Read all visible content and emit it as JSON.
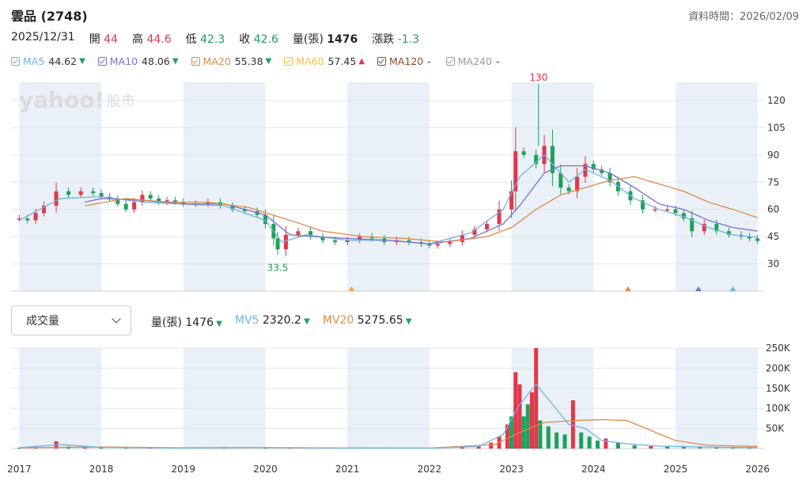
{
  "header": {
    "title": "雲品 (2748)",
    "timestamp_label": "資料時間：2026/02/09"
  },
  "quote": {
    "date": "2025/12/31",
    "open_label": "開",
    "open": "44",
    "high_label": "高",
    "high": "44.6",
    "low_label": "低",
    "low": "42.3",
    "close_label": "收",
    "close": "42.6",
    "volume_label": "量(張)",
    "volume": "1476",
    "change_label": "漲跌",
    "change": "-1.3"
  },
  "ma_legend": [
    {
      "name": "MA5",
      "value": "44.62",
      "trend": "down",
      "color": "#6fb3e0"
    },
    {
      "name": "MA10",
      "value": "48.06",
      "trend": "down",
      "color": "#7b6fd0"
    },
    {
      "name": "MA20",
      "value": "55.38",
      "trend": "down",
      "color": "#e08a4a"
    },
    {
      "name": "MA60",
      "value": "57.45",
      "trend": "up",
      "color": "#f0c040"
    },
    {
      "name": "MA120",
      "value": "-",
      "trend": "none",
      "color": "#8b4a2a"
    },
    {
      "name": "MA240",
      "value": "-",
      "trend": "none",
      "color": "#999999"
    }
  ],
  "watermark": {
    "brand": "yahoo!",
    "section": "股市"
  },
  "volume_selector": {
    "selected": "成交量"
  },
  "volume_legend": [
    {
      "name": "量(張)",
      "value": "1476",
      "trend": "down",
      "color": "#222222"
    },
    {
      "name": "MV5",
      "value": "2320.2",
      "trend": "down",
      "color": "#6fb3e0"
    },
    {
      "name": "MV20",
      "value": "5275.65",
      "trend": "down",
      "color": "#e08a4a"
    }
  ],
  "colors": {
    "up": "#e0384a",
    "down": "#1ea05a",
    "band": "#e9f0f7"
  },
  "chart_data": [
    {
      "type": "candlestick",
      "title": "",
      "x_labels": [
        "2017",
        "2018",
        "2019",
        "2020",
        "2021",
        "2022",
        "2023",
        "2024",
        "2025",
        "2026"
      ],
      "y_ticks": [
        30,
        45,
        60,
        75,
        90,
        105,
        120
      ],
      "ylim": [
        15,
        130
      ],
      "annotations": [
        {
          "text": "130",
          "x": 2023.33,
          "y": 130,
          "kind": "high"
        },
        {
          "text": "33.5",
          "x": 2020.15,
          "y": 33.5,
          "kind": "low"
        }
      ],
      "event_markers": [
        {
          "x": 2021.05,
          "color": "#f0a050"
        },
        {
          "x": 2024.42,
          "color": "#e08a4a"
        },
        {
          "x": 2025.28,
          "color": "#7b6fd0"
        },
        {
          "x": 2025.7,
          "color": "#6fb3e0"
        }
      ],
      "close_series": [
        [
          2017.0,
          55
        ],
        [
          2017.1,
          54
        ],
        [
          2017.2,
          58
        ],
        [
          2017.3,
          62
        ],
        [
          2017.45,
          70
        ],
        [
          2017.6,
          68
        ],
        [
          2017.75,
          70
        ],
        [
          2017.9,
          69
        ],
        [
          2018.0,
          67
        ],
        [
          2018.1,
          66
        ],
        [
          2018.2,
          63
        ],
        [
          2018.3,
          60
        ],
        [
          2018.4,
          64
        ],
        [
          2018.5,
          68
        ],
        [
          2018.6,
          66
        ],
        [
          2018.7,
          64
        ],
        [
          2018.8,
          65
        ],
        [
          2018.9,
          64
        ],
        [
          2019.0,
          63
        ],
        [
          2019.15,
          63
        ],
        [
          2019.3,
          64
        ],
        [
          2019.45,
          62
        ],
        [
          2019.6,
          60
        ],
        [
          2019.75,
          59
        ],
        [
          2019.9,
          57
        ],
        [
          2020.0,
          52
        ],
        [
          2020.1,
          44
        ],
        [
          2020.15,
          38
        ],
        [
          2020.25,
          46
        ],
        [
          2020.4,
          48
        ],
        [
          2020.55,
          45
        ],
        [
          2020.7,
          43
        ],
        [
          2020.85,
          42
        ],
        [
          2021.0,
          43
        ],
        [
          2021.15,
          45
        ],
        [
          2021.3,
          44
        ],
        [
          2021.45,
          42
        ],
        [
          2021.6,
          43
        ],
        [
          2021.75,
          42
        ],
        [
          2021.9,
          41
        ],
        [
          2022.0,
          40
        ],
        [
          2022.1,
          41
        ],
        [
          2022.25,
          42
        ],
        [
          2022.4,
          46
        ],
        [
          2022.55,
          49
        ],
        [
          2022.7,
          52
        ],
        [
          2022.85,
          60
        ],
        [
          2023.0,
          70
        ],
        [
          2023.05,
          92
        ],
        [
          2023.15,
          90
        ],
        [
          2023.3,
          85
        ],
        [
          2023.4,
          95
        ],
        [
          2023.5,
          80
        ],
        [
          2023.6,
          72
        ],
        [
          2023.7,
          70
        ],
        [
          2023.8,
          78
        ],
        [
          2023.9,
          85
        ],
        [
          2024.0,
          82
        ],
        [
          2024.1,
          80
        ],
        [
          2024.2,
          75
        ],
        [
          2024.3,
          70
        ],
        [
          2024.45,
          65
        ],
        [
          2024.6,
          60
        ],
        [
          2024.75,
          60
        ],
        [
          2024.9,
          60
        ],
        [
          2025.0,
          58
        ],
        [
          2025.1,
          55
        ],
        [
          2025.2,
          48
        ],
        [
          2025.35,
          52
        ],
        [
          2025.5,
          48
        ],
        [
          2025.65,
          46
        ],
        [
          2025.8,
          45
        ],
        [
          2025.9,
          44
        ],
        [
          2026.0,
          42.6
        ]
      ],
      "ma_series": [
        {
          "name": "MA5",
          "points": [
            [
              2017.0,
              54
            ],
            [
              2017.5,
              66
            ],
            [
              2018.0,
              67
            ],
            [
              2018.5,
              64
            ],
            [
              2019.0,
              63
            ],
            [
              2019.5,
              62
            ],
            [
              2020.0,
              54
            ],
            [
              2020.2,
              42
            ],
            [
              2020.5,
              46
            ],
            [
              2021.0,
              43
            ],
            [
              2021.5,
              43
            ],
            [
              2022.0,
              41
            ],
            [
              2022.5,
              47
            ],
            [
              2022.9,
              60
            ],
            [
              2023.1,
              78
            ],
            [
              2023.4,
              90
            ],
            [
              2023.7,
              75
            ],
            [
              2023.9,
              82
            ],
            [
              2024.2,
              76
            ],
            [
              2024.5,
              66
            ],
            [
              2024.8,
              60
            ],
            [
              2025.1,
              56
            ],
            [
              2025.4,
              50
            ],
            [
              2025.7,
              46
            ],
            [
              2026.0,
              44.62
            ]
          ]
        },
        {
          "name": "MA10",
          "points": [
            [
              2017.8,
              64
            ],
            [
              2018.0,
              66
            ],
            [
              2018.5,
              65
            ],
            [
              2019.0,
              63
            ],
            [
              2019.5,
              63
            ],
            [
              2020.0,
              57
            ],
            [
              2020.3,
              46
            ],
            [
              2020.6,
              45
            ],
            [
              2021.0,
              44
            ],
            [
              2021.5,
              43
            ],
            [
              2022.0,
              41
            ],
            [
              2022.5,
              44
            ],
            [
              2022.9,
              52
            ],
            [
              2023.1,
              62
            ],
            [
              2023.4,
              80
            ],
            [
              2023.6,
              84
            ],
            [
              2023.9,
              84
            ],
            [
              2024.2,
              80
            ],
            [
              2024.5,
              72
            ],
            [
              2024.8,
              63
            ],
            [
              2025.1,
              60
            ],
            [
              2025.4,
              54
            ],
            [
              2025.7,
              50
            ],
            [
              2026.0,
              48.06
            ]
          ]
        },
        {
          "name": "MA20",
          "points": [
            [
              2017.8,
              62
            ],
            [
              2018.3,
              66
            ],
            [
              2018.8,
              64
            ],
            [
              2019.3,
              64
            ],
            [
              2019.8,
              61
            ],
            [
              2020.3,
              54
            ],
            [
              2020.7,
              48
            ],
            [
              2021.2,
              45
            ],
            [
              2021.7,
              44
            ],
            [
              2022.2,
              42
            ],
            [
              2022.7,
              45
            ],
            [
              2023.0,
              50
            ],
            [
              2023.3,
              60
            ],
            [
              2023.6,
              68
            ],
            [
              2023.9,
              72
            ],
            [
              2024.2,
              76
            ],
            [
              2024.5,
              78
            ],
            [
              2024.8,
              74
            ],
            [
              2025.1,
              70
            ],
            [
              2025.4,
              64
            ],
            [
              2025.7,
              60
            ],
            [
              2026.0,
              55.38
            ]
          ]
        }
      ]
    },
    {
      "type": "bar",
      "title": "",
      "x_labels": [
        "2017",
        "2018",
        "2019",
        "2020",
        "2021",
        "2022",
        "2023",
        "2024",
        "2025",
        "2026"
      ],
      "y_ticks": [
        "50K",
        "100K",
        "150K",
        "200K",
        "250K"
      ],
      "ylim": [
        0,
        250000
      ],
      "volumes": [
        [
          2017.0,
          2000,
          "d"
        ],
        [
          2017.2,
          3000,
          "u"
        ],
        [
          2017.45,
          18000,
          "u"
        ],
        [
          2017.6,
          5000,
          "d"
        ],
        [
          2017.8,
          4000,
          "u"
        ],
        [
          2018.0,
          3000,
          "d"
        ],
        [
          2018.3,
          2000,
          "d"
        ],
        [
          2018.6,
          2500,
          "u"
        ],
        [
          2019.0,
          1500,
          "d"
        ],
        [
          2019.5,
          1500,
          "d"
        ],
        [
          2020.0,
          2500,
          "d"
        ],
        [
          2020.3,
          3000,
          "u"
        ],
        [
          2020.7,
          1500,
          "d"
        ],
        [
          2021.0,
          1200,
          "d"
        ],
        [
          2021.5,
          1200,
          "u"
        ],
        [
          2022.0,
          1000,
          "d"
        ],
        [
          2022.4,
          3000,
          "u"
        ],
        [
          2022.6,
          6000,
          "u"
        ],
        [
          2022.75,
          15000,
          "u"
        ],
        [
          2022.85,
          30000,
          "u"
        ],
        [
          2022.95,
          60000,
          "u"
        ],
        [
          2023.0,
          80000,
          "d"
        ],
        [
          2023.05,
          190000,
          "u"
        ],
        [
          2023.1,
          160000,
          "u"
        ],
        [
          2023.15,
          80000,
          "d"
        ],
        [
          2023.2,
          110000,
          "d"
        ],
        [
          2023.25,
          140000,
          "u"
        ],
        [
          2023.3,
          250000,
          "u"
        ],
        [
          2023.35,
          70000,
          "d"
        ],
        [
          2023.45,
          55000,
          "d"
        ],
        [
          2023.55,
          40000,
          "d"
        ],
        [
          2023.65,
          35000,
          "d"
        ],
        [
          2023.75,
          120000,
          "u"
        ],
        [
          2023.85,
          40000,
          "d"
        ],
        [
          2023.95,
          30000,
          "d"
        ],
        [
          2024.05,
          20000,
          "d"
        ],
        [
          2024.15,
          25000,
          "u"
        ],
        [
          2024.3,
          15000,
          "d"
        ],
        [
          2024.5,
          8000,
          "d"
        ],
        [
          2024.7,
          6000,
          "u"
        ],
        [
          2024.9,
          5000,
          "d"
        ],
        [
          2025.1,
          6000,
          "d"
        ],
        [
          2025.3,
          4000,
          "d"
        ],
        [
          2025.5,
          3000,
          "d"
        ],
        [
          2025.7,
          2500,
          "d"
        ],
        [
          2025.9,
          2000,
          "d"
        ]
      ],
      "mv5": [
        [
          2017.0,
          2000
        ],
        [
          2017.5,
          10000
        ],
        [
          2018.0,
          3000
        ],
        [
          2019.0,
          1500
        ],
        [
          2020.0,
          2500
        ],
        [
          2021.0,
          1300
        ],
        [
          2022.0,
          1100
        ],
        [
          2022.6,
          5000
        ],
        [
          2022.9,
          35000
        ],
        [
          2023.1,
          110000
        ],
        [
          2023.3,
          160000
        ],
        [
          2023.5,
          110000
        ],
        [
          2023.7,
          60000
        ],
        [
          2023.9,
          50000
        ],
        [
          2024.1,
          20000
        ],
        [
          2024.4,
          12000
        ],
        [
          2024.8,
          6000
        ],
        [
          2025.2,
          4500
        ],
        [
          2025.6,
          3000
        ],
        [
          2026.0,
          2320.2
        ]
      ],
      "mv20": [
        [
          2017.0,
          2000
        ],
        [
          2018.0,
          4000
        ],
        [
          2019.0,
          2000
        ],
        [
          2020.0,
          2200
        ],
        [
          2021.0,
          1500
        ],
        [
          2022.0,
          1200
        ],
        [
          2022.8,
          10000
        ],
        [
          2023.1,
          40000
        ],
        [
          2023.4,
          65000
        ],
        [
          2023.8,
          70000
        ],
        [
          2024.1,
          72000
        ],
        [
          2024.4,
          70000
        ],
        [
          2024.7,
          45000
        ],
        [
          2025.0,
          20000
        ],
        [
          2025.4,
          8000
        ],
        [
          2026.0,
          5275.65
        ]
      ]
    }
  ]
}
